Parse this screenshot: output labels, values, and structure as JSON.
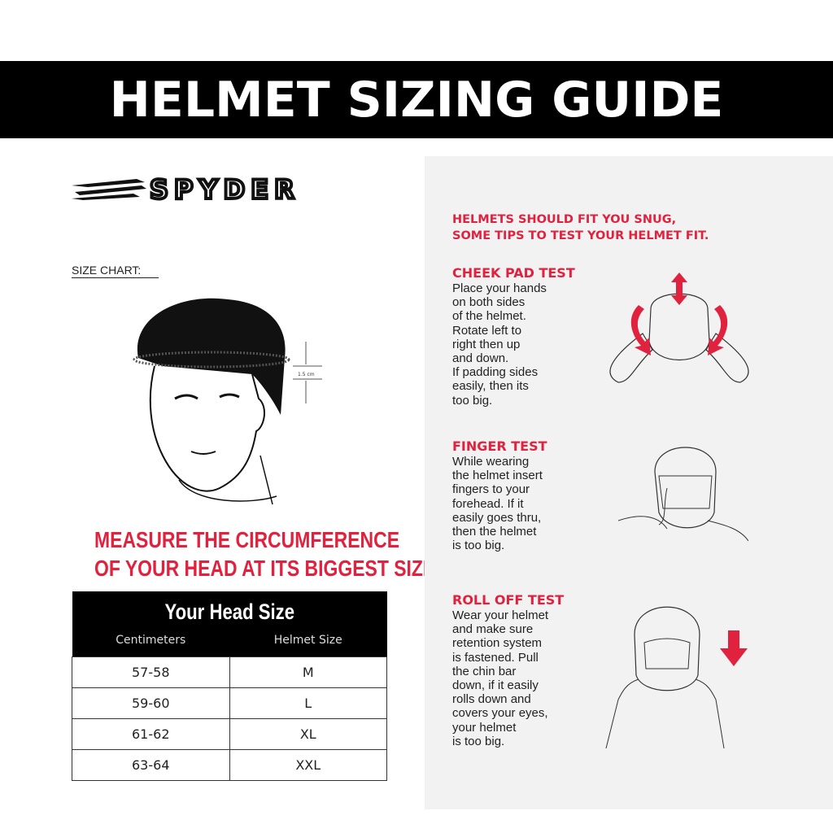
{
  "banner": {
    "title": "HELMET SIZING GUIDE"
  },
  "brand": {
    "logo_text": "SPYDER"
  },
  "size_chart": {
    "label": "SIZE CHART:",
    "measure_mark": "1.5 cm"
  },
  "measure_text": [
    "MEASURE THE CIRCUMFERENCE",
    "OF YOUR HEAD AT ITS BIGGEST SIZE."
  ],
  "table": {
    "title": "Your Head Size",
    "columns": [
      "Centimeters",
      "Helmet Size"
    ],
    "rows": [
      [
        "57-58",
        "M"
      ],
      [
        "59-60",
        "L"
      ],
      [
        "61-62",
        "XL"
      ],
      [
        "63-64",
        "XXL"
      ]
    ]
  },
  "tips": {
    "heading": [
      "HELMETS SHOULD FIT YOU SNUG,",
      "SOME TIPS TO TEST YOUR HELMET FIT."
    ],
    "sections": [
      {
        "title": "CHEEK PAD TEST",
        "lines": [
          "Place your hands",
          "on both sides",
          "of the helmet.",
          "Rotate left to",
          "right then up",
          "and down.",
          "If padding sides",
          "easily, then its",
          "too big."
        ]
      },
      {
        "title": "FINGER TEST",
        "lines": [
          "While wearing",
          "the helmet insert",
          "fingers to your",
          "forehead. If it",
          "easily goes thru,",
          "then the helmet",
          "is too big."
        ]
      },
      {
        "title": "ROLL OFF TEST",
        "lines": [
          "Wear your helmet",
          "and make sure",
          "retention system",
          "is fastened. Pull",
          "the chin bar",
          "down, if it easily",
          "rolls down and",
          "covers your eyes,",
          "your helmet",
          "is too big."
        ]
      }
    ]
  },
  "colors": {
    "accent": "#e0223f",
    "banner": "#000000",
    "panel": "#f2f2f2"
  }
}
